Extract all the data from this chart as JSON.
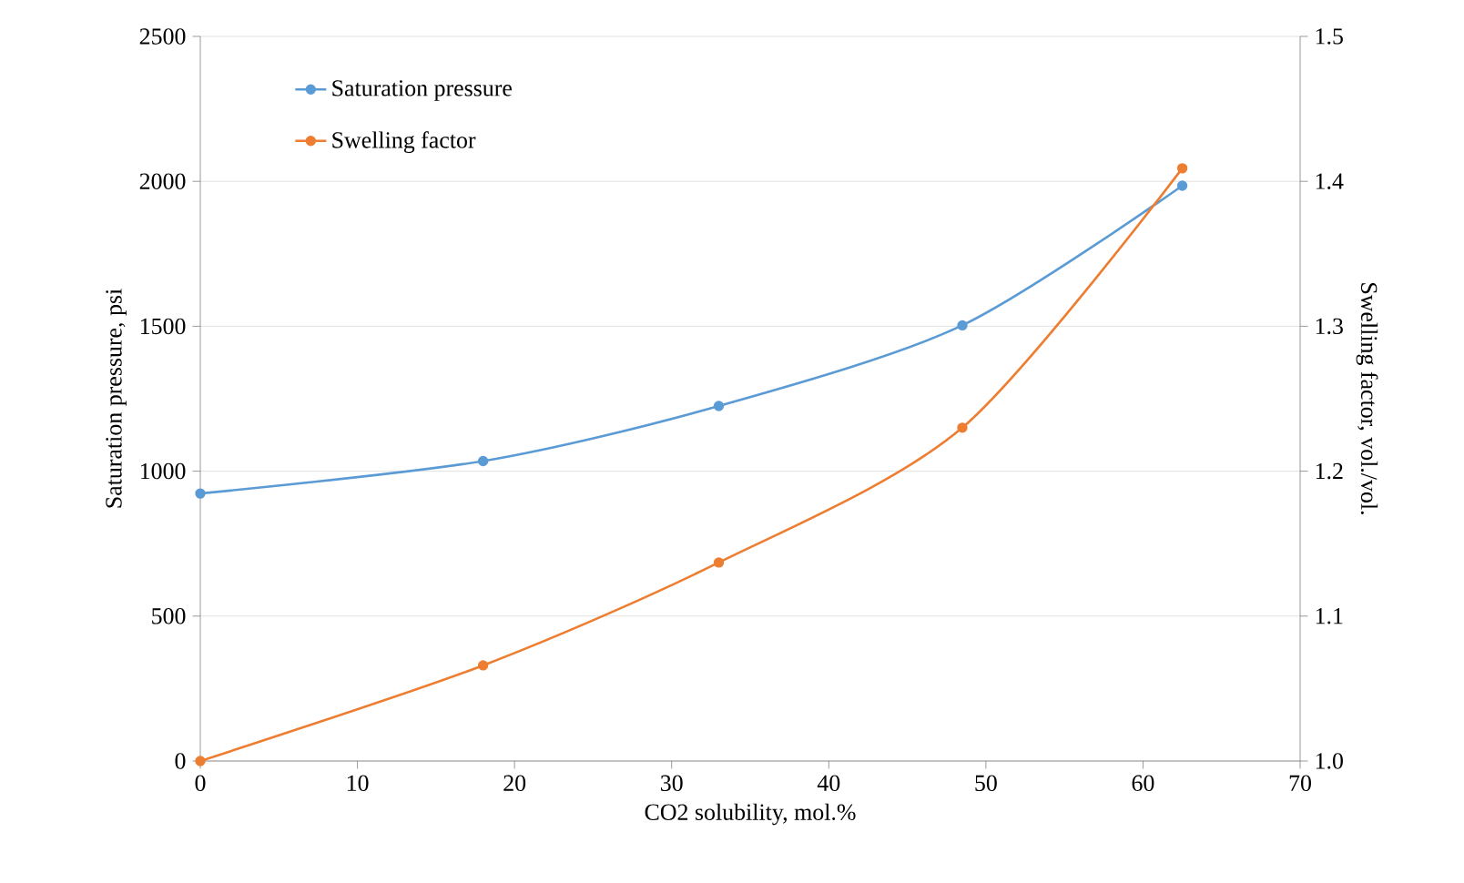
{
  "chart_data": {
    "type": "line",
    "xlabel": "CO2 solubility, mol.%",
    "ylabel": "Saturation pressure, psi",
    "y2label": "Swelling factor, vol./vol.",
    "xlim": [
      0,
      70
    ],
    "xticks": [
      0,
      10,
      20,
      30,
      40,
      50,
      60,
      70
    ],
    "ylim": [
      0,
      2500
    ],
    "yticks": [
      0,
      500,
      1000,
      1500,
      2000,
      2500
    ],
    "y2lim": [
      1.0,
      1.5
    ],
    "y2ticks": [
      {
        "value": 1.0,
        "label": "1.0"
      },
      {
        "value": 1.1,
        "label": "1.1"
      },
      {
        "value": 1.2,
        "label": "1.2"
      },
      {
        "value": 1.3,
        "label": "1.3"
      },
      {
        "value": 1.4,
        "label": "1.4"
      },
      {
        "value": 1.5,
        "label": "1.5"
      }
    ],
    "grid": "y",
    "legend": "top left",
    "marker": "circle",
    "line_style": "solid",
    "series": [
      {
        "name": "Saturation pressure",
        "color": "#5b9bd5",
        "x": [
          0,
          18,
          33,
          48.5,
          62.5
        ],
        "values": [
          923,
          1035,
          1225,
          1503,
          1985
        ]
      },
      {
        "name": "Swelling factor",
        "color": "#ed7d31",
        "axis": "y2",
        "x": [
          0,
          18,
          33,
          48.5,
          62.5
        ],
        "values": [
          1.0,
          1.066,
          1.137,
          1.23,
          1.409
        ]
      }
    ]
  }
}
